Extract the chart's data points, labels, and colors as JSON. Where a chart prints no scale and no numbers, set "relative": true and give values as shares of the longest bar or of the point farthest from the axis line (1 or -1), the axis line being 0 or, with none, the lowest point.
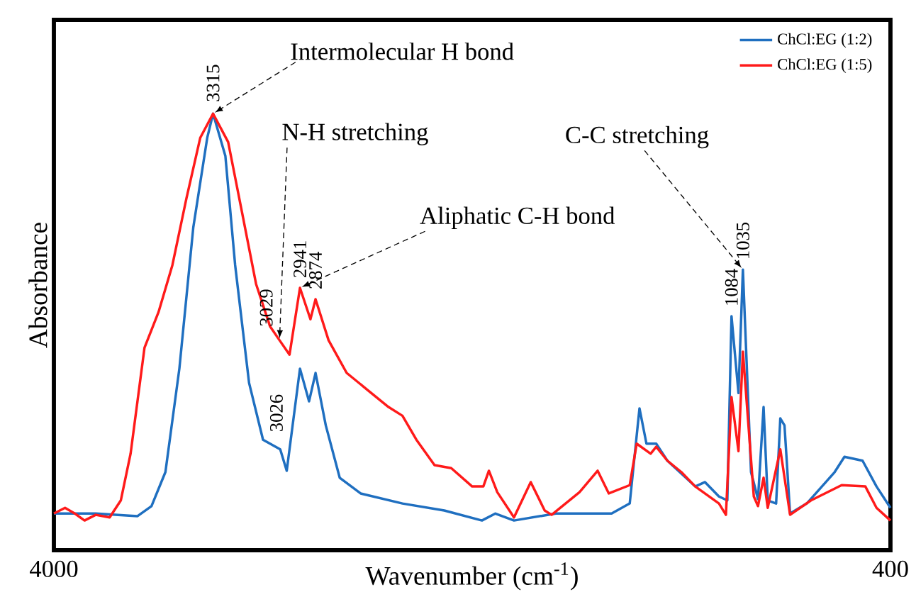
{
  "chart_data": {
    "type": "line",
    "relative": true,
    "xlabel": "Wavenumber (cm$^{-1}$)",
    "ylabel": "Absorbance",
    "xlim": [
      4000,
      400
    ],
    "xticks": [
      4000,
      400
    ],
    "legend": "top right",
    "annotations": [
      {
        "text": "Intermolecular H bond",
        "x": 3315,
        "y": 1
      },
      {
        "text": "N-H stretching",
        "x": 3029,
        "y": 0.481
      },
      {
        "text": "Aliphatic C-H bond",
        "x": 2941,
        "y": 0.601
      },
      {
        "text": "C-C stretching",
        "x": 1035,
        "y": 0.643
      },
      {
        "text": "3315",
        "x": 3315,
        "y": 1
      },
      {
        "text": "3029",
        "x": 3029,
        "y": 0.481
      },
      {
        "text": "3026",
        "x": 3026,
        "y": 0.231
      },
      {
        "text": "2941",
        "x": 2941,
        "y": 0.601
      },
      {
        "text": "2874",
        "x": 2874,
        "y": 0.575
      },
      {
        "text": "1084",
        "x": 1084,
        "y": 0.536
      },
      {
        "text": "1035",
        "x": 1035,
        "y": 0.643
      }
    ],
    "series": [
      {
        "name": "ChCl:EG (1:2)",
        "color": "#1f6fc0",
        "x": [
          4000,
          3820,
          3640,
          3580,
          3520,
          3460,
          3400,
          3340,
          3315,
          3262,
          3220,
          3160,
          3100,
          3026,
          2998,
          2941,
          2902,
          2874,
          2830,
          2770,
          2680,
          2500,
          2320,
          2158,
          2100,
          2020,
          1840,
          1600,
          1522,
          1480,
          1450,
          1408,
          1360,
          1240,
          1198,
          1138,
          1102,
          1084,
          1054,
          1035,
          1000,
          970,
          946,
          928,
          892,
          874,
          856,
          832,
          760,
          640,
          598,
          520,
          460,
          400
        ],
        "values": [
          0.084,
          0.084,
          0.078,
          0.101,
          0.179,
          0.416,
          0.74,
          0.945,
          1,
          0.903,
          0.653,
          0.383,
          0.253,
          0.231,
          0.182,
          0.416,
          0.341,
          0.406,
          0.286,
          0.166,
          0.13,
          0.107,
          0.091,
          0.068,
          0.084,
          0.068,
          0.084,
          0.084,
          0.107,
          0.325,
          0.244,
          0.244,
          0.205,
          0.146,
          0.156,
          0.123,
          0.114,
          0.536,
          0.36,
          0.643,
          0.179,
          0.117,
          0.328,
          0.114,
          0.107,
          0.302,
          0.286,
          0.084,
          0.107,
          0.179,
          0.214,
          0.205,
          0.146,
          0.097
        ]
      },
      {
        "name": "ChCl:EG (1:5)",
        "color": "#ff1a1a",
        "x": [
          4000,
          3952,
          3910,
          3868,
          3820,
          3760,
          3712,
          3670,
          3610,
          3550,
          3490,
          3430,
          3370,
          3315,
          3250,
          3190,
          3130,
          3070,
          3029,
          2986,
          2941,
          2896,
          2874,
          2818,
          2740,
          2650,
          2560,
          2500,
          2440,
          2362,
          2290,
          2200,
          2152,
          2128,
          2092,
          2020,
          1948,
          1888,
          1858,
          1738,
          1660,
          1612,
          1522,
          1492,
          1432,
          1408,
          1360,
          1300,
          1240,
          1138,
          1108,
          1084,
          1054,
          1035,
          988,
          970,
          946,
          928,
          874,
          832,
          742,
          610,
          508,
          460,
          400
        ],
        "values": [
          0.084,
          0.097,
          0.084,
          0.068,
          0.081,
          0.075,
          0.114,
          0.221,
          0.464,
          0.545,
          0.653,
          0.805,
          0.945,
          1,
          0.935,
          0.773,
          0.61,
          0.513,
          0.481,
          0.448,
          0.601,
          0.529,
          0.575,
          0.481,
          0.406,
          0.367,
          0.328,
          0.308,
          0.253,
          0.195,
          0.188,
          0.146,
          0.146,
          0.182,
          0.133,
          0.075,
          0.156,
          0.091,
          0.081,
          0.133,
          0.182,
          0.13,
          0.149,
          0.244,
          0.221,
          0.237,
          0.205,
          0.179,
          0.146,
          0.107,
          0.081,
          0.351,
          0.227,
          0.455,
          0.123,
          0.101,
          0.166,
          0.097,
          0.231,
          0.081,
          0.114,
          0.149,
          0.146,
          0.097,
          0.068
        ]
      }
    ]
  }
}
